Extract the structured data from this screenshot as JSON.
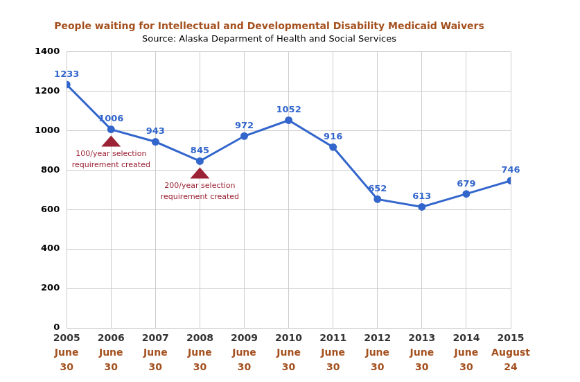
{
  "chart_data": {
    "type": "line",
    "title": "People waiting for Intellectual and Developmental Disability Medicaid Waivers",
    "subtitle": "Source: Alaska Deparment of Health and Social Services",
    "categories": [
      [
        "2005",
        "June",
        "30"
      ],
      [
        "2006",
        "June",
        "30"
      ],
      [
        "2007",
        "June",
        "30"
      ],
      [
        "2008",
        "June",
        "30"
      ],
      [
        "2009",
        "June",
        "30"
      ],
      [
        "2010",
        "June",
        "30"
      ],
      [
        "2011",
        "June",
        "30"
      ],
      [
        "2012",
        "June",
        "30"
      ],
      [
        "2013",
        "June",
        "30"
      ],
      [
        "2014",
        "June",
        "30"
      ],
      [
        "2015",
        "August",
        "24"
      ]
    ],
    "values": [
      1233,
      1006,
      943,
      845,
      972,
      1052,
      916,
      652,
      613,
      679,
      746
    ],
    "color": "#3366cc",
    "marker": "circle",
    "line_style": "solid",
    "data_labels": true,
    "grid": true,
    "ylim": [
      0,
      1400
    ],
    "yticks": [
      0,
      200,
      400,
      600,
      800,
      1000,
      1200,
      1400
    ],
    "annotations": [
      {
        "category_index": 1,
        "text": [
          "100/year selection",
          "requirement created"
        ]
      },
      {
        "category_index": 3,
        "text": [
          "200/year selection",
          "requirement created"
        ]
      }
    ]
  }
}
